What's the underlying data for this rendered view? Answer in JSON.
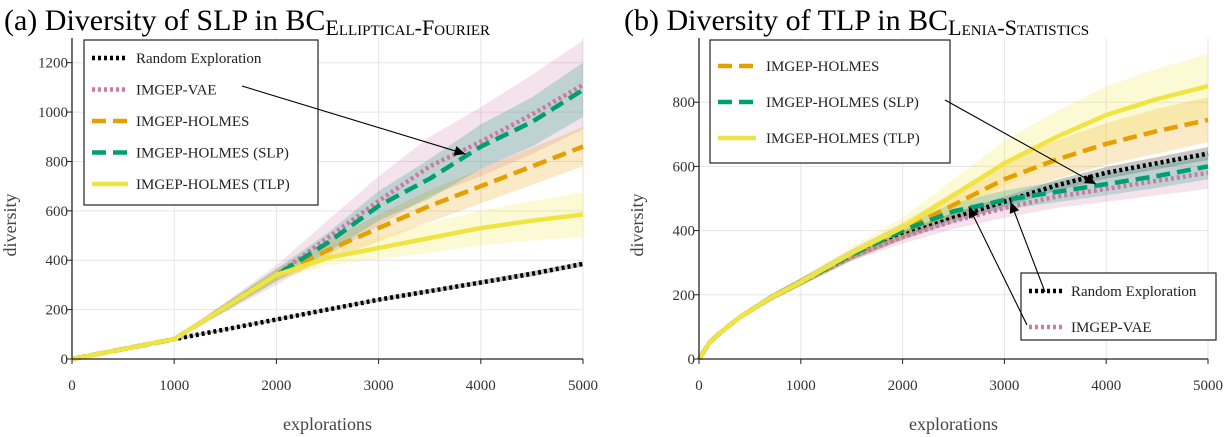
{
  "chart_data": [
    {
      "type": "line",
      "title": {
        "prefix": "(a) Diversity of SLP in ",
        "bc": "BC",
        "sub": "Elliptical-Fourier"
      },
      "xlabel": "explorations",
      "ylabel": "diversity",
      "xlim": [
        0,
        5000
      ],
      "ylim": [
        0,
        1300
      ],
      "xticks": [
        0,
        1000,
        2000,
        3000,
        4000,
        5000
      ],
      "yticks": [
        0,
        200,
        400,
        600,
        800,
        1000,
        1200
      ],
      "grid": true,
      "legend": {
        "placement": "top-left",
        "order": [
          "Random Exploration",
          "IMGEP-VAE",
          "IMGEP-HOLMES",
          "IMGEP-HOLMES (SLP)",
          "IMGEP-HOLMES (TLP)"
        ]
      },
      "annotations": [
        {
          "target_series": "IMGEP-HOLMES (SLP)",
          "text_anchor": "IMGEP-VAE",
          "point": [
            3850,
            830
          ]
        }
      ],
      "series": [
        {
          "name": "Random Exploration",
          "color": "#000000",
          "style": "dotted",
          "x": [
            0,
            1000,
            1500,
            2000,
            2500,
            3000,
            3500,
            4000,
            4500,
            5000
          ],
          "y": [
            0,
            80,
            120,
            160,
            200,
            240,
            275,
            310,
            345,
            385
          ],
          "band": [
            5,
            5,
            5,
            6,
            6,
            7,
            8,
            9,
            10,
            10
          ]
        },
        {
          "name": "IMGEP-VAE",
          "color": "#cc79a7",
          "style": "dotted",
          "x": [
            0,
            1000,
            1500,
            2000,
            2500,
            3000,
            3500,
            4000,
            4500,
            5000
          ],
          "y": [
            0,
            80,
            210,
            340,
            490,
            640,
            780,
            880,
            990,
            1110
          ],
          "band": [
            3,
            5,
            20,
            40,
            70,
            100,
            120,
            140,
            160,
            180
          ]
        },
        {
          "name": "IMGEP-HOLMES",
          "color": "#e69f00",
          "style": "dashed",
          "x": [
            0,
            1000,
            1500,
            2000,
            2500,
            3000,
            3500,
            4000,
            4500,
            5000
          ],
          "y": [
            0,
            80,
            210,
            340,
            440,
            530,
            620,
            700,
            780,
            860
          ],
          "band": [
            3,
            5,
            15,
            25,
            40,
            55,
            65,
            70,
            75,
            80
          ]
        },
        {
          "name": "IMGEP-HOLMES (SLP)",
          "color": "#009e73",
          "style": "dashed",
          "x": [
            0,
            1000,
            1500,
            2000,
            2500,
            3000,
            3500,
            4000,
            4500,
            5000
          ],
          "y": [
            0,
            80,
            210,
            340,
            470,
            620,
            730,
            860,
            960,
            1090
          ],
          "band": [
            3,
            5,
            15,
            25,
            40,
            60,
            80,
            90,
            100,
            110
          ]
        },
        {
          "name": "IMGEP-HOLMES (TLP)",
          "color": "#f0e442",
          "style": "solid",
          "x": [
            0,
            1000,
            1500,
            2000,
            2500,
            3000,
            3500,
            4000,
            4500,
            5000
          ],
          "y": [
            0,
            80,
            210,
            340,
            410,
            450,
            490,
            530,
            560,
            585
          ],
          "band": [
            3,
            5,
            12,
            20,
            30,
            45,
            60,
            70,
            80,
            90
          ]
        }
      ]
    },
    {
      "type": "line",
      "title": {
        "prefix": "(b) Diversity of TLP in ",
        "bc": "BC",
        "sub": "Lenia-Statistics"
      },
      "xlabel": "explorations",
      "ylabel": "diversity",
      "xlim": [
        0,
        5000
      ],
      "ylim": [
        0,
        1000
      ],
      "xticks": [
        0,
        1000,
        2000,
        3000,
        4000,
        5000
      ],
      "yticks": [
        0,
        200,
        400,
        600,
        800
      ],
      "grid": true,
      "legends": [
        {
          "placement": "top-left",
          "order": [
            "IMGEP-HOLMES",
            "IMGEP-HOLMES (SLP)",
            "IMGEP-HOLMES (TLP)"
          ]
        },
        {
          "placement": "bottom-right",
          "order": [
            "Random Exploration",
            "IMGEP-VAE"
          ]
        }
      ],
      "annotations": [
        {
          "target_series": "IMGEP-HOLMES (SLP)",
          "text_anchor": "IMGEP-HOLMES (SLP)",
          "point": [
            3900,
            545
          ]
        },
        {
          "target_series": "Random Exploration",
          "text_anchor": "Random Exploration",
          "point": [
            3060,
            490
          ]
        },
        {
          "target_series": "IMGEP-VAE",
          "text_anchor": "IMGEP-VAE",
          "point": [
            2650,
            475
          ]
        }
      ],
      "series": [
        {
          "name": "Random Exploration",
          "color": "#000000",
          "style": "dotted",
          "x": [
            0,
            100,
            200,
            400,
            700,
            1000,
            1500,
            2000,
            2500,
            3000,
            3500,
            4000,
            4500,
            5000
          ],
          "y": [
            0,
            50,
            80,
            130,
            190,
            240,
            320,
            385,
            440,
            490,
            540,
            580,
            610,
            640
          ],
          "band": [
            5,
            5,
            6,
            7,
            8,
            10,
            12,
            14,
            15,
            16,
            17,
            18,
            19,
            20
          ]
        },
        {
          "name": "IMGEP-VAE",
          "color": "#cc79a7",
          "style": "dotted",
          "x": [
            0,
            100,
            200,
            400,
            700,
            1000,
            1500,
            2000,
            2500,
            3000,
            3500,
            4000,
            4500,
            5000
          ],
          "y": [
            0,
            50,
            80,
            130,
            190,
            240,
            320,
            380,
            430,
            470,
            505,
            530,
            555,
            580
          ],
          "band": [
            5,
            5,
            6,
            8,
            10,
            12,
            15,
            20,
            25,
            30,
            35,
            40,
            45,
            50
          ]
        },
        {
          "name": "IMGEP-HOLMES",
          "color": "#e69f00",
          "style": "dashed",
          "x": [
            0,
            100,
            200,
            400,
            700,
            1000,
            1500,
            2000,
            2500,
            3000,
            3500,
            4000,
            4500,
            5000
          ],
          "y": [
            0,
            50,
            80,
            130,
            190,
            240,
            325,
            400,
            480,
            560,
            620,
            670,
            710,
            745
          ],
          "band": [
            5,
            5,
            6,
            8,
            10,
            12,
            18,
            25,
            40,
            55,
            60,
            65,
            70,
            70
          ]
        },
        {
          "name": "IMGEP-HOLMES (SLP)",
          "color": "#009e73",
          "style": "dashed",
          "x": [
            0,
            100,
            200,
            400,
            700,
            1000,
            1500,
            2000,
            2500,
            3000,
            3500,
            4000,
            4500,
            5000
          ],
          "y": [
            0,
            50,
            80,
            130,
            190,
            240,
            325,
            400,
            460,
            495,
            520,
            545,
            570,
            600
          ],
          "band": [
            5,
            5,
            6,
            8,
            10,
            12,
            15,
            20,
            25,
            30,
            32,
            35,
            37,
            40
          ]
        },
        {
          "name": "IMGEP-HOLMES (TLP)",
          "color": "#f0e442",
          "style": "solid",
          "x": [
            0,
            100,
            200,
            400,
            700,
            1000,
            1500,
            2000,
            2500,
            3000,
            3500,
            4000,
            4500,
            5000
          ],
          "y": [
            0,
            50,
            80,
            130,
            190,
            240,
            330,
            410,
            510,
            610,
            690,
            760,
            810,
            850
          ],
          "band": [
            5,
            5,
            6,
            8,
            10,
            12,
            20,
            30,
            50,
            70,
            80,
            90,
            95,
            100
          ]
        }
      ]
    }
  ]
}
